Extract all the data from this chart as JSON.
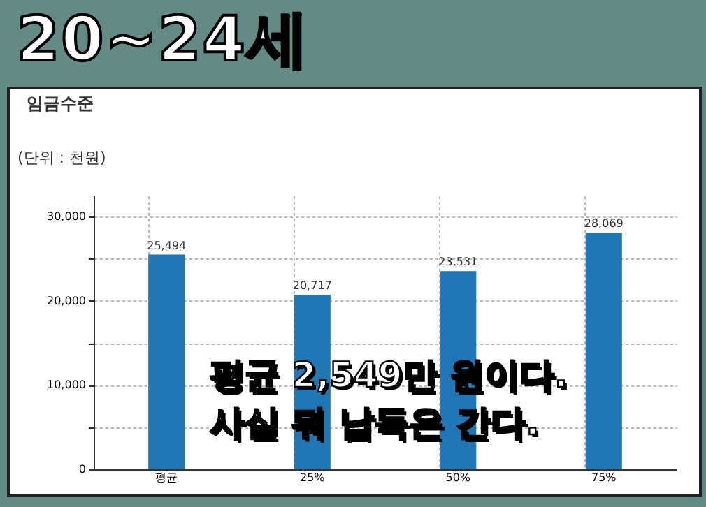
{
  "chart_data": {
    "type": "bar",
    "title": "20~24세",
    "subtitle": "임금수준",
    "ylabel": "(단위 : 천원)",
    "categories": [
      "평균",
      "25%",
      "50%",
      "75%"
    ],
    "values": [
      25494,
      20717,
      23531,
      28069
    ],
    "color": "#2077b4",
    "ylim": [
      0,
      32500
    ],
    "yticks": [
      0,
      {
        "value": 5000,
        "label": null
      },
      {
        "value": 10000,
        "label": "10,000"
      },
      {
        "value": 15000,
        "label": null
      },
      {
        "value": 20000,
        "label": "20,000"
      },
      {
        "value": 25000,
        "label": null
      },
      {
        "value": 30000,
        "label": "30,000"
      }
    ],
    "grid": true,
    "value_labels": [
      "25,494",
      "20,717",
      "23,531",
      "28,069"
    ],
    "annotations": [
      "평균 2,549만 원이다.",
      "사실 뭐 납득은 간다."
    ]
  }
}
